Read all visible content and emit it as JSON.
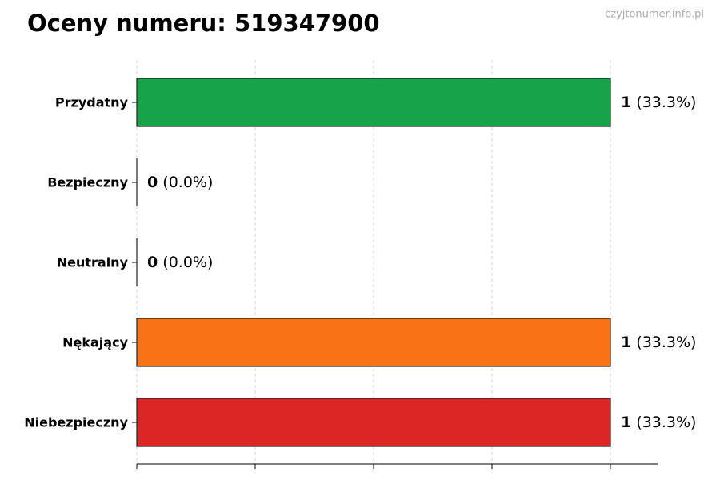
{
  "chart_data": {
    "type": "hbar",
    "title": "Oceny numeru: 519347900",
    "watermark": "czyjtonumer.info.pl",
    "categories": [
      "Przydatny",
      "Bezpieczny",
      "Neutralny",
      "Nękający",
      "Niebezpieczny"
    ],
    "values": [
      1,
      0,
      0,
      1,
      1
    ],
    "percent_labels": [
      "(33.3%)",
      "(0.0%)",
      "(0.0%)",
      "(33.3%)",
      "(33.3%)"
    ],
    "colors": [
      "#16a34a",
      "#2563eb",
      "#9ca3af",
      "#f97316",
      "#dc2626"
    ],
    "xlim": [
      0,
      1.1
    ],
    "xticks": [
      0,
      0.25,
      0.5,
      0.75,
      1
    ],
    "grid": true
  }
}
